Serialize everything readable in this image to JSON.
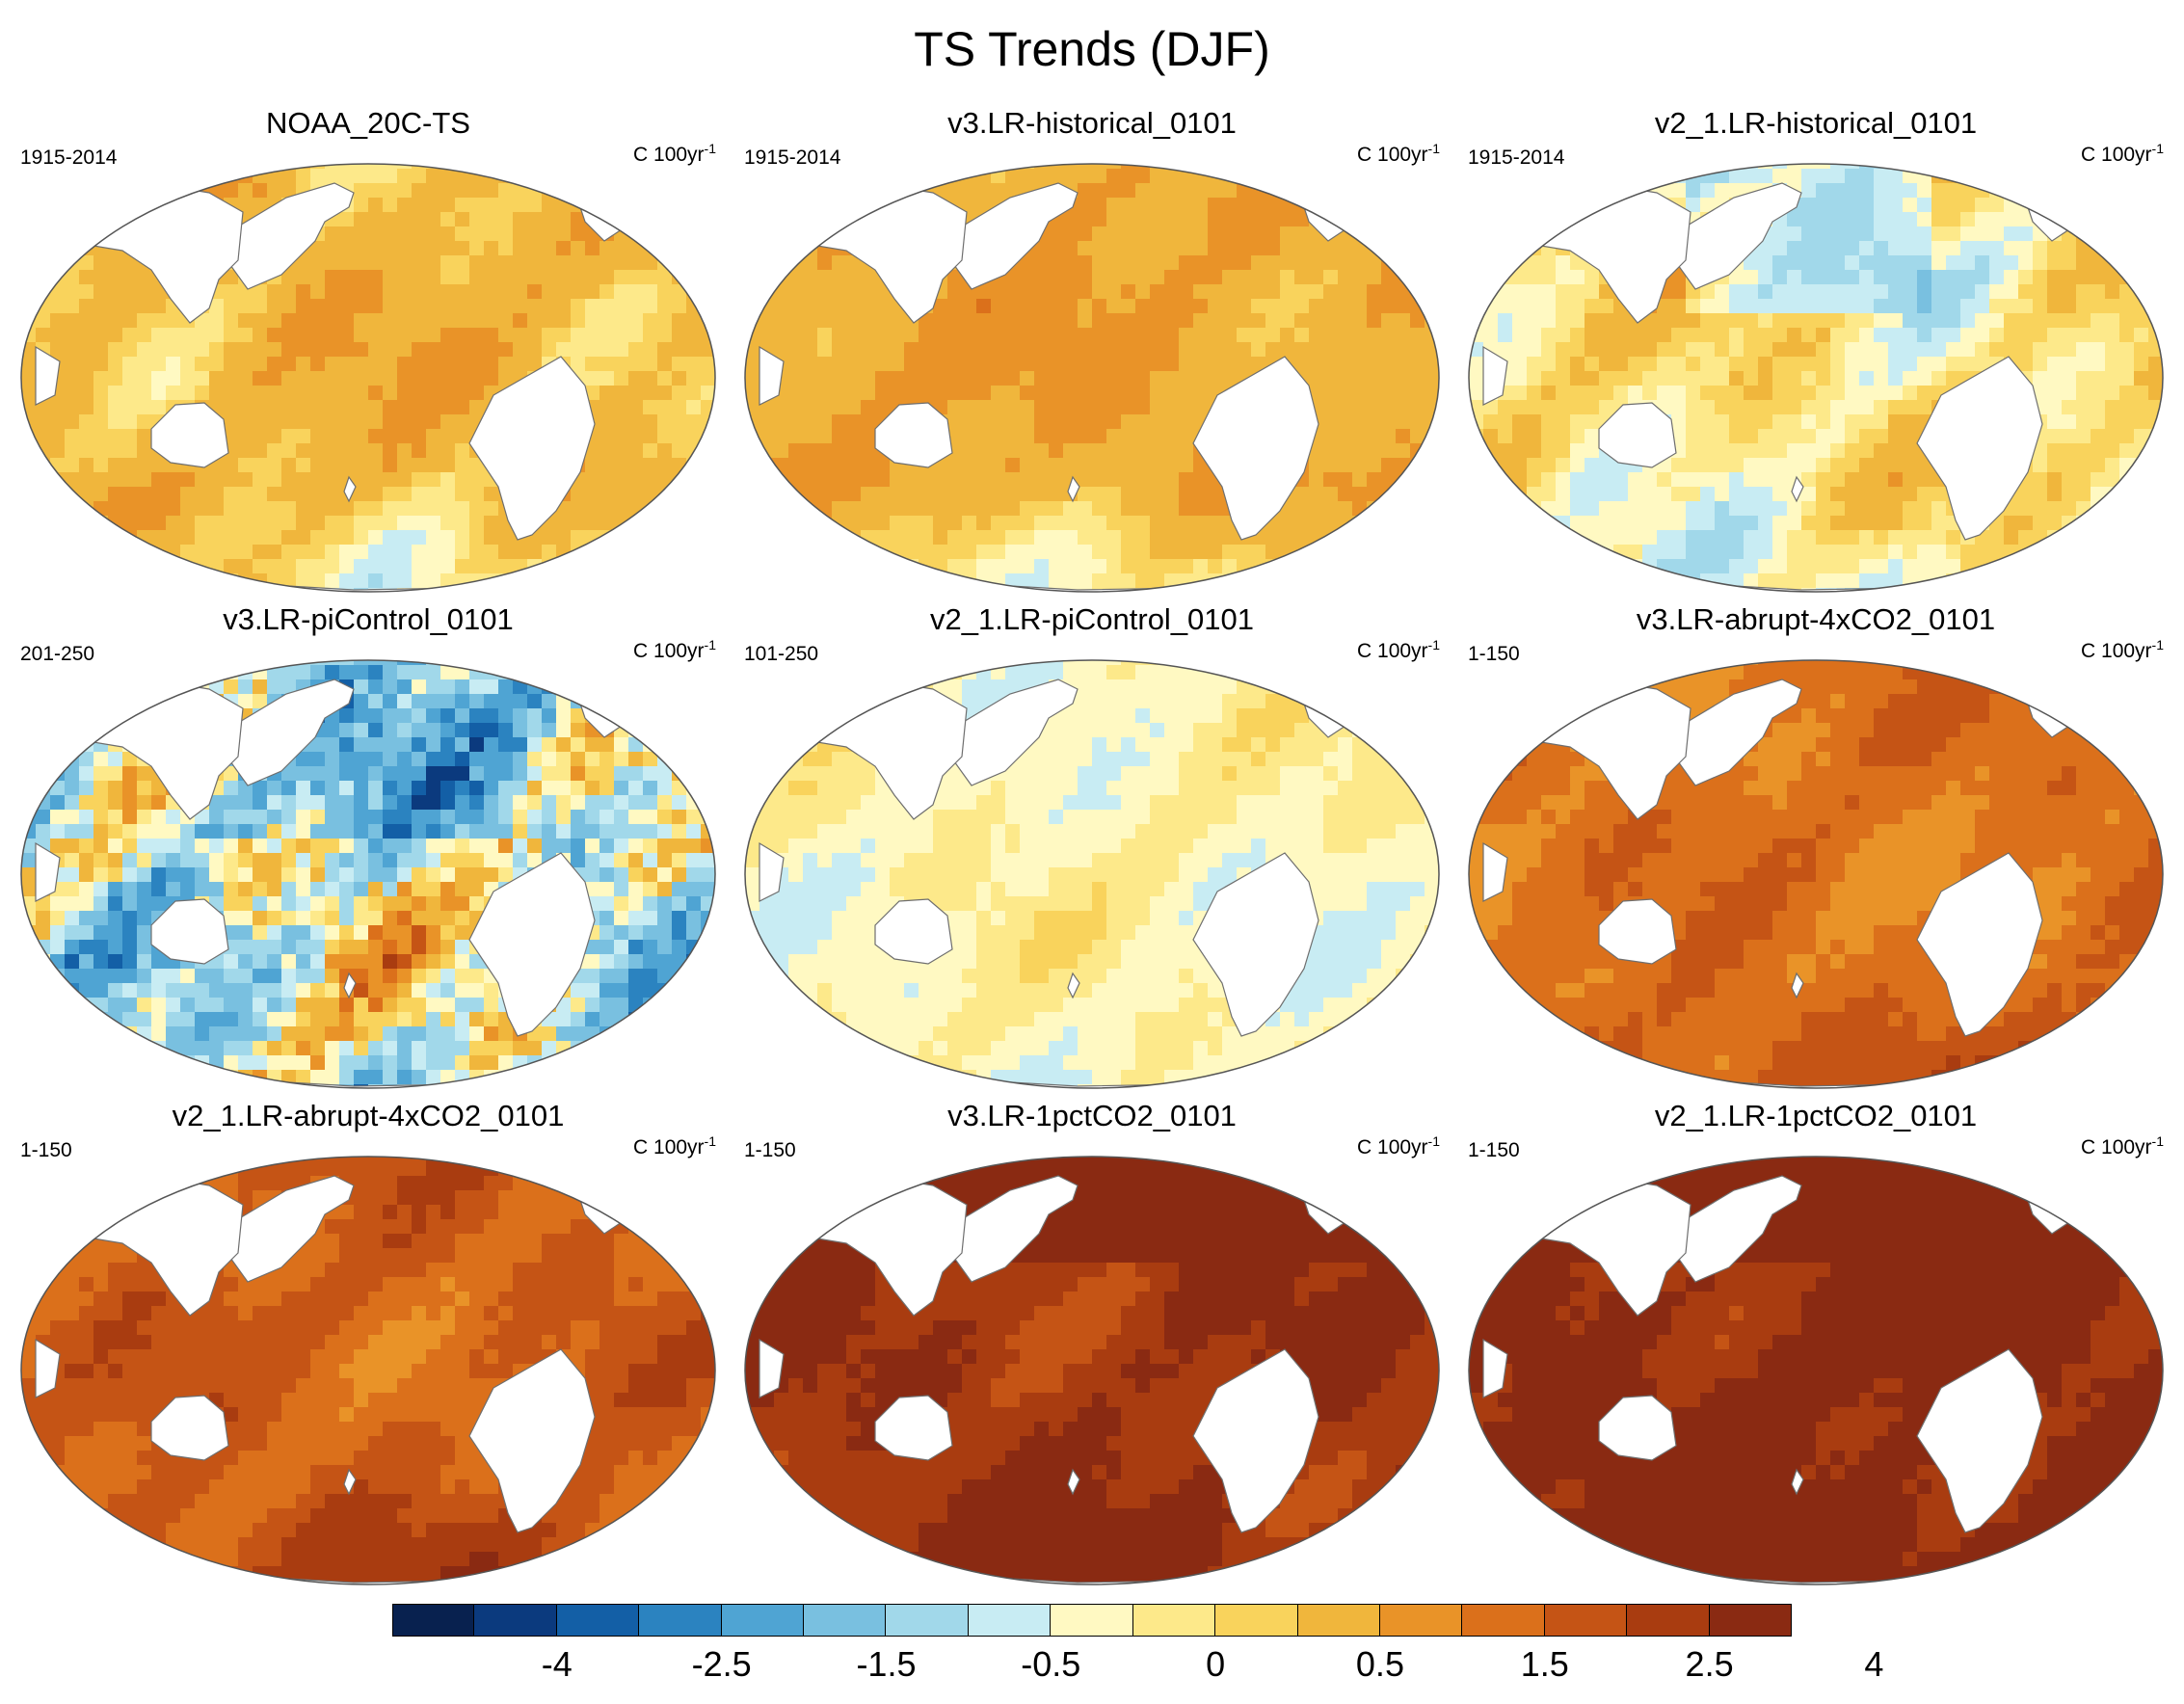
{
  "figure_title": "TS Trends (DJF)",
  "palette": [
    "#08214f",
    "#0b3a7e",
    "#135fa6",
    "#2b83c0",
    "#4fa4d3",
    "#79c0e0",
    "#a1d8ea",
    "#c8ecf3",
    "#fff9c2",
    "#fde98a",
    "#f9d35c",
    "#f0b63c",
    "#e99328",
    "#db701b",
    "#c55415",
    "#a93c10",
    "#8a2a12"
  ],
  "colors": {
    "land": "#ffffff",
    "coast": "#6e6e6e",
    "outline": "#555555"
  },
  "panels": [
    {
      "title": "NOAA_20C-TS",
      "period": "1915-2014",
      "units": "C 100yr",
      "units_exp": "-1",
      "field": {
        "base": 0.7,
        "amp": 0.45,
        "pattern": "mixed",
        "south": -0.5
      }
    },
    {
      "title": "v3.LR-historical_0101",
      "period": "1915-2014",
      "units": "C 100yr",
      "units_exp": "-1",
      "field": {
        "base": 0.95,
        "amp": 0.35,
        "pattern": "mixed",
        "south": -0.9
      }
    },
    {
      "title": "v2_1.LR-historical_0101",
      "period": "1915-2014",
      "units": "C 100yr",
      "units_exp": "-1",
      "field": {
        "base": 0.2,
        "amp": 0.5,
        "pattern": "cool",
        "south": -0.4
      }
    },
    {
      "title": "v3.LR-piControl_0101",
      "period": "201-250",
      "units": "C 100yr",
      "units_exp": "-1",
      "field": {
        "base": -0.3,
        "amp": 1.3,
        "pattern": "noisy",
        "south": 0.0
      }
    },
    {
      "title": "v2_1.LR-piControl_0101",
      "period": "101-250",
      "units": "C 100yr",
      "units_exp": "-1",
      "field": {
        "base": -0.05,
        "amp": 0.25,
        "pattern": "weak",
        "south": 0.0
      }
    },
    {
      "title": "v3.LR-abrupt-4xCO2_0101",
      "period": "1-150",
      "units": "C 100yr",
      "units_exp": "-1",
      "field": {
        "base": 1.7,
        "amp": 0.4,
        "pattern": "warm",
        "south": 0.5
      }
    },
    {
      "title": "v2_1.LR-abrupt-4xCO2_0101",
      "period": "1-150",
      "units": "C 100yr",
      "units_exp": "-1",
      "field": {
        "base": 2.0,
        "amp": 0.45,
        "pattern": "warm",
        "south": 0.6
      }
    },
    {
      "title": "v3.LR-1pctCO2_0101",
      "period": "1-150",
      "units": "C 100yr",
      "units_exp": "-1",
      "field": {
        "base": 2.9,
        "amp": 0.45,
        "pattern": "hot",
        "south": 0.4
      }
    },
    {
      "title": "v2_1.LR-1pctCO2_0101",
      "period": "1-150",
      "units": "C 100yr",
      "units_exp": "-1",
      "field": {
        "base": 3.2,
        "amp": 0.45,
        "pattern": "hot",
        "south": 0.4
      }
    }
  ],
  "colorbar": {
    "levels": [
      -5,
      -4,
      -3,
      -2.5,
      -2,
      -1.5,
      -1,
      -0.5,
      -0.25,
      0,
      0.25,
      0.5,
      1,
      1.5,
      2,
      2.5,
      3,
      4,
      5
    ],
    "labels": [
      {
        "text": "-4",
        "index": 1
      },
      {
        "text": "-2.5",
        "index": 3
      },
      {
        "text": "-1.5",
        "index": 5
      },
      {
        "text": "-0.5",
        "index": 7
      },
      {
        "text": "0",
        "index": 9
      },
      {
        "text": "0.5",
        "index": 11
      },
      {
        "text": "1.5",
        "index": 13
      },
      {
        "text": "2.5",
        "index": 15
      },
      {
        "text": "4",
        "index": 17
      }
    ]
  }
}
